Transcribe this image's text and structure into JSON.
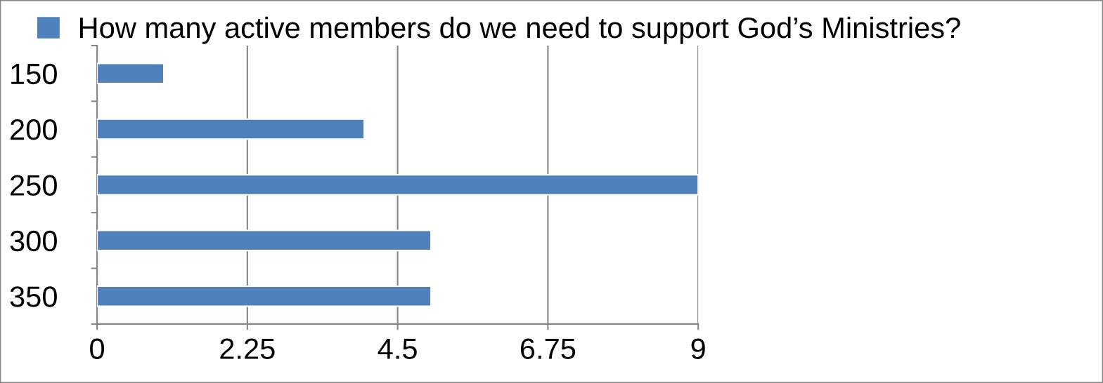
{
  "chart_data": {
    "type": "bar",
    "orientation": "horizontal",
    "categories": [
      "150",
      "200",
      "250",
      "300",
      "350"
    ],
    "series": [
      {
        "name": "How many active members do we need to support God’s Ministries?",
        "color": "#4f81bd",
        "values": [
          1,
          4,
          9,
          5,
          5
        ]
      }
    ],
    "xlim": [
      0,
      9
    ],
    "xticks": [
      0,
      2.25,
      4.5,
      6.75,
      9
    ],
    "grid": "x",
    "legend": "top"
  }
}
